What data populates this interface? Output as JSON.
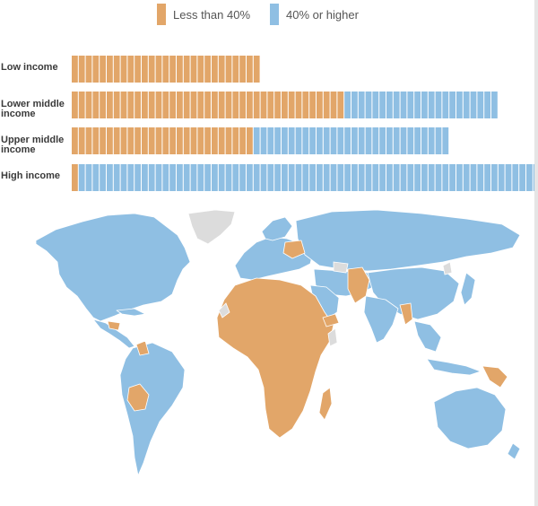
{
  "legend": {
    "items": [
      {
        "label": "Less than 40%",
        "color": "#e2a669"
      },
      {
        "label": "40% or higher",
        "color": "#8fbfe3"
      }
    ]
  },
  "colors": {
    "orange": "#e2a669",
    "blue": "#8fbfe3",
    "unknown": "#dcdcdc",
    "border": "#ffffff"
  },
  "chart_data": {
    "type": "bar",
    "orientation": "horizontal",
    "stacked": true,
    "unit": "countries",
    "categories": [
      "Low income",
      "Lower middle income",
      "Upper middle income",
      "High income"
    ],
    "series": [
      {
        "name": "Less than 40%",
        "values": [
          27,
          39,
          26,
          1
        ]
      },
      {
        "name": "40% or higher",
        "values": [
          0,
          22,
          28,
          66
        ]
      }
    ]
  }
}
